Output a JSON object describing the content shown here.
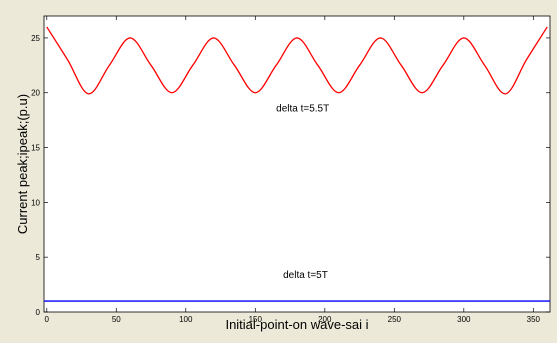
{
  "chart_data": {
    "type": "line",
    "title": "",
    "xlabel": "Initial-point-on wave-sai i",
    "ylabel": "Current peak;ipeak;(p.u)",
    "xlim": [
      -2,
      362
    ],
    "ylim": [
      0,
      27
    ],
    "grid": false,
    "xticks": [
      0,
      50,
      100,
      150,
      200,
      250,
      300,
      350
    ],
    "yticks": [
      0,
      5,
      10,
      15,
      20,
      25
    ],
    "series": [
      {
        "name": "",
        "color": "#ff0000",
        "x": [
          0,
          15,
          30,
          45,
          60,
          75,
          90,
          105,
          120,
          135,
          150,
          165,
          180,
          195,
          210,
          225,
          240,
          255,
          270,
          285,
          300,
          315,
          330,
          345,
          360
        ],
        "y": [
          26.0,
          23.0,
          19.9,
          22.5,
          25.0,
          22.5,
          20.0,
          22.5,
          25.0,
          22.5,
          20.0,
          22.5,
          25.0,
          22.5,
          20.0,
          22.5,
          25.0,
          22.5,
          20.0,
          22.5,
          25.0,
          22.5,
          19.9,
          23.0,
          26.0
        ]
      },
      {
        "name": "",
        "color": "#0000ff",
        "x": [
          -2,
          362
        ],
        "y": [
          1.0,
          1.0
        ]
      }
    ],
    "annotations": [
      {
        "text": "delta t=5.5T",
        "x": 165,
        "y": 18.3
      },
      {
        "text": "delta t=5T",
        "x": 170,
        "y": 3.1
      }
    ]
  }
}
